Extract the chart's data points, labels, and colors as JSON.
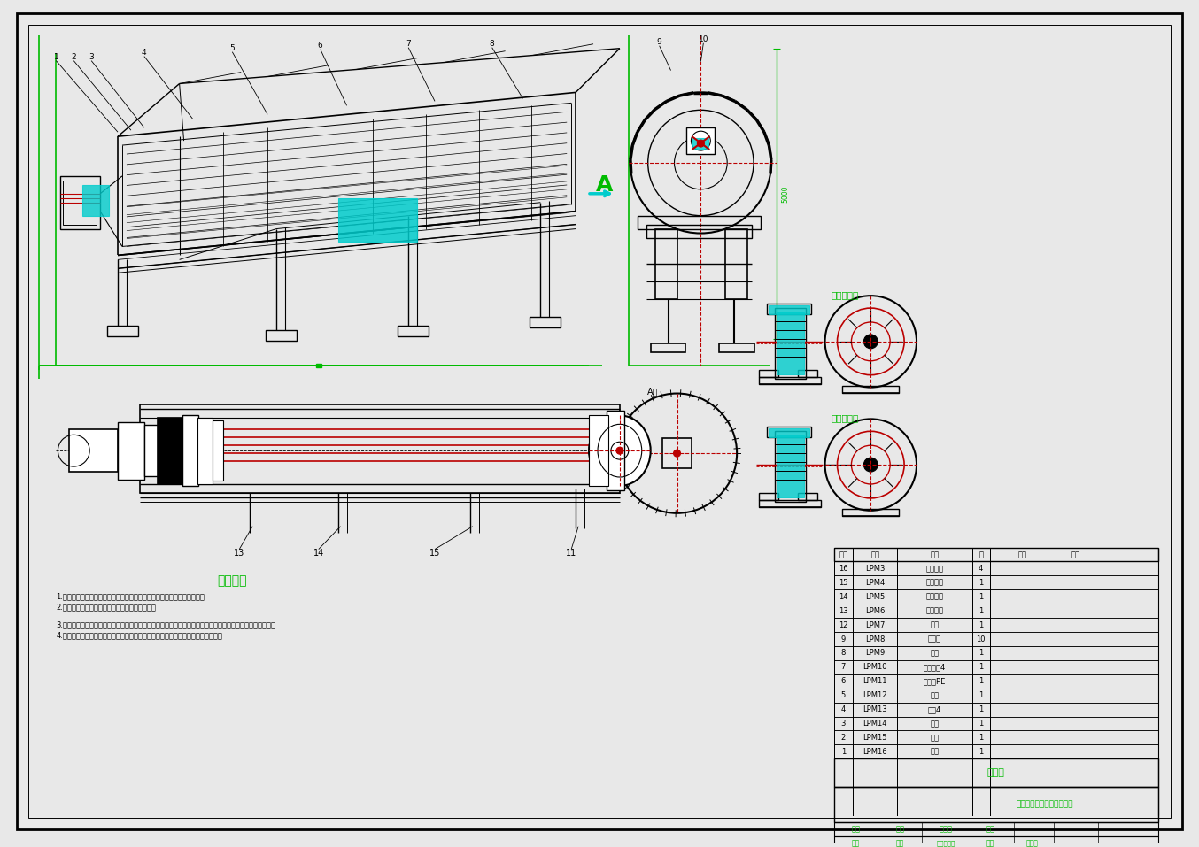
{
  "bg": "#e8e8e8",
  "paper": "#ffffff",
  "BK": "#000000",
  "RD": "#bb0000",
  "GN": "#00bb00",
  "CY": "#00cccc",
  "tech_req_title": "技术要求",
  "tech_req_1": "1.零件表面应清除沙尘、氧化皮、飞边、毛刺、油脉、弹坑、误差等缺陷。",
  "tech_req_2": "2.所有加工面应不得有凼化现象。质、特、精度。",
  "tech_req_3": "3.面对、对接等要求严格。严格按图示内容进行加工，保证各加工面的精度，控制尺寸公差，保证尺寸准确性。",
  "tech_req_4": "4.各一设计按公差（国标）要求，氧化皮、毛刺、弹坑、油脉、温度、丑气等处理。",
  "label_active": "主动滚筒组",
  "label_support": "支持滚筒组",
  "label_mingxi": "明细表",
  "title_block": "垃圾分拣装置总装图分手送",
  "parts": [
    [
      "16",
      "LPM3",
      "支持滚筒",
      "4",
      "",
      ""
    ],
    [
      "15",
      "LPM4",
      "主动滚筒",
      "1",
      "",
      ""
    ],
    [
      "14",
      "LPM5",
      "筒体筛板",
      "1",
      "",
      ""
    ],
    [
      "13",
      "LPM6",
      "筒架结构",
      "1",
      "",
      ""
    ],
    [
      "12",
      "LPM7",
      "支脚",
      "1",
      "",
      ""
    ],
    [
      "9",
      "LPM8",
      "螺旋叶",
      "10",
      "",
      ""
    ],
    [
      "8",
      "LPM9",
      "螺母",
      "1",
      "",
      ""
    ],
    [
      "7",
      "LPM10",
      "下螺旋叶4",
      "1",
      "",
      ""
    ],
    [
      "6",
      "LPM11",
      "主动链PE",
      "1",
      "",
      ""
    ],
    [
      "5",
      "LPM12",
      "链条",
      "1",
      "",
      ""
    ],
    [
      "4",
      "LPM13",
      "螺母4",
      "1",
      "",
      ""
    ],
    [
      "3",
      "LPM14",
      "链轮",
      "1",
      "",
      ""
    ],
    [
      "2",
      "LPM15",
      "电机",
      "1",
      "",
      ""
    ],
    [
      "1",
      "LPM16",
      "电机",
      "1",
      "",
      ""
    ]
  ]
}
